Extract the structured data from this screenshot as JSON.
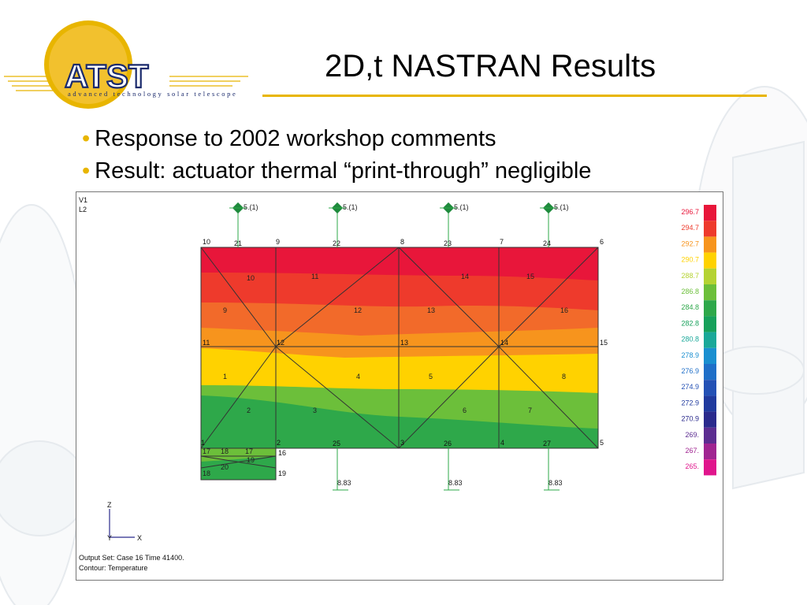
{
  "slide": {
    "title": "2D,t NASTRAN Results",
    "bullets": [
      "Response to 2002 workshop comments",
      "Result: actuator thermal “print-through” negligible"
    ]
  },
  "logo": {
    "wordmark": "ATST",
    "tagline": "advanced technology solar telescope",
    "colors": {
      "gold": "#e8b500",
      "navy": "#1a2a6c"
    }
  },
  "figure": {
    "view_label": "V1",
    "layer_label": "L2",
    "output_set": "Output Set: Case 16 Time 41400.",
    "contour": "Contour: Temperature",
    "axis_z": "Z",
    "axis_x": "X",
    "axis_y": "Y",
    "constraint_label": "5.(1)",
    "load_label": "8.83",
    "node_labels": {
      "n10": "10",
      "n21": "21",
      "n9": "9",
      "n22": "22",
      "n8": "8",
      "n23": "23",
      "n7": "7",
      "n24": "24",
      "n6": "6",
      "n11": "11",
      "n12": "12",
      "n13": "13",
      "n14": "14",
      "n15": "15",
      "n1": "1",
      "n2": "2",
      "n25": "25",
      "n3": "3",
      "n26": "26",
      "n4": "4",
      "n27": "27",
      "n5": "5",
      "n17": "17",
      "n18": "18",
      "n16": "16",
      "n19": "19",
      "n20": "20"
    },
    "element_labels": {
      "e10": "10",
      "e11": "11",
      "e14": "14",
      "e15": "15",
      "e9": "9",
      "e12": "12",
      "e13": "13",
      "e16": "16",
      "e1": "1",
      "e4": "4",
      "e5": "5",
      "e8": "8",
      "e2": "2",
      "e3": "3",
      "e6": "6",
      "e7": "7",
      "e17": "17",
      "e18": "18",
      "e19": "19",
      "e20": "20"
    },
    "legend": [
      {
        "value": "296.7",
        "color": "#e8163a"
      },
      {
        "value": "294.7",
        "color": "#ee3a2c"
      },
      {
        "value": "292.7",
        "color": "#f7941d"
      },
      {
        "value": "290.7",
        "color": "#ffd200"
      },
      {
        "value": "288.7",
        "color": "#b5d333"
      },
      {
        "value": "286.8",
        "color": "#6cbf3a"
      },
      {
        "value": "284.8",
        "color": "#2ea84a"
      },
      {
        "value": "282.8",
        "color": "#17a15b"
      },
      {
        "value": "280.8",
        "color": "#1aa899"
      },
      {
        "value": "278.9",
        "color": "#1a8fd0"
      },
      {
        "value": "276.9",
        "color": "#1f6fc8"
      },
      {
        "value": "274.9",
        "color": "#2451b5"
      },
      {
        "value": "272.9",
        "color": "#203a9e"
      },
      {
        "value": "270.9",
        "color": "#2a2a8c"
      },
      {
        "value": "269.",
        "color": "#5c2d91"
      },
      {
        "value": "267.",
        "color": "#a02591"
      },
      {
        "value": "265.",
        "color": "#e0158c"
      }
    ]
  }
}
